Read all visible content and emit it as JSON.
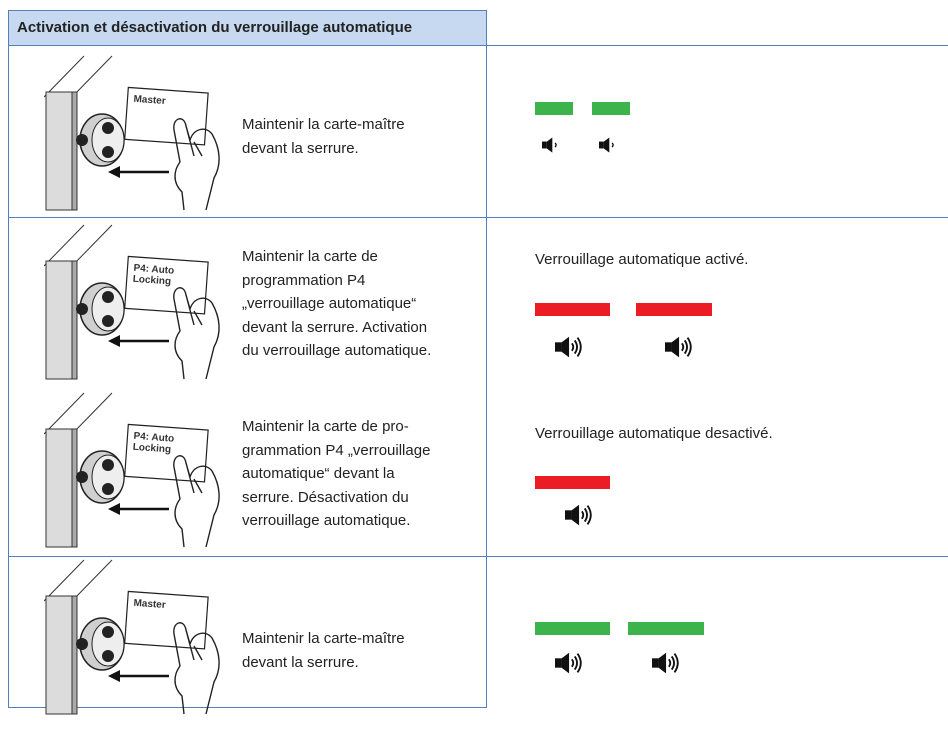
{
  "header": {
    "title": "Activation et désactivation du verrouillage automatique"
  },
  "rows": [
    {
      "card": [
        "Master"
      ],
      "instruction": [
        "Maintenir la carte-maître",
        "devant la serrure."
      ]
    },
    {
      "card": [
        "P4: Auto",
        "Locking"
      ],
      "instruction": [
        "Maintenir la carte de",
        "programmation P4",
        "„verrouillage automatique“",
        "devant la serrure. Activation",
        "du verrouillage automatique."
      ],
      "status": "Verrouillage automatique activé."
    },
    {
      "card": [
        "P4: Auto",
        "Locking"
      ],
      "instruction": [
        "Maintenir la carte de pro-",
        "grammation P4 „verrouillage",
        "automatique“ devant la",
        "serrure. Désactivation du",
        "verrouillage automatique."
      ],
      "status": "Verrouillage automatique desactivé."
    },
    {
      "card": [
        "Master"
      ],
      "instruction": [
        "Maintenir la carte-maître",
        "devant la serrure."
      ]
    }
  ]
}
